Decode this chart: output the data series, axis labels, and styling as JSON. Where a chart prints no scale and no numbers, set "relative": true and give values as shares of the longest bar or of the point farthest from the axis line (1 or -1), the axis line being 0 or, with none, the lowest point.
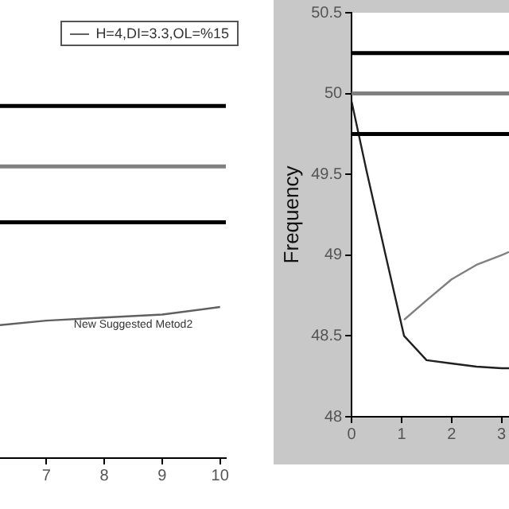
{
  "chart_data": [
    {
      "type": "line",
      "relative": true,
      "xlim": [
        6.2,
        10.1
      ],
      "xticks": [
        7,
        8,
        9,
        10
      ],
      "legend": "top right",
      "grid": false,
      "marker": "none",
      "line_style": "solid",
      "series": [
        {
          "name": "H=4,DI=3.3,OL=%15",
          "color": "#606060",
          "x": [
            6.2,
            7,
            8,
            9,
            10
          ],
          "values": [
            0.88,
            0.91,
            0.93,
            0.95,
            1
          ]
        }
      ],
      "ref_lines": [
        {
          "axis": "y",
          "value": 2.33,
          "color": "#000000"
        },
        {
          "axis": "y",
          "value": 1.93,
          "color": "#808080"
        },
        {
          "axis": "y",
          "value": 1.56,
          "color": "#000000"
        }
      ],
      "annotations": [
        {
          "text": "New Suggested Metod2",
          "x": 8.5,
          "y": 0.93
        }
      ]
    },
    {
      "type": "line",
      "ylabel": "Frequency",
      "xlim": [
        0,
        3.15
      ],
      "xticks": [
        0,
        1,
        2,
        3
      ],
      "ylim": [
        48,
        50.5
      ],
      "yticks": [
        48,
        48.5,
        49,
        49.5,
        50,
        50.5
      ],
      "grid": false,
      "marker": "none",
      "line_style": "solid",
      "series": [
        {
          "color": "#202020",
          "x": [
            0,
            0.3,
            0.68,
            1.05,
            1.5,
            2,
            2.5,
            3,
            3.15
          ],
          "values": [
            49.95,
            49.52,
            49,
            48.5,
            48.35,
            48.33,
            48.31,
            48.3,
            48.3
          ]
        },
        {
          "color": "#808080",
          "x": [
            1.05,
            1.5,
            2,
            2.5,
            3,
            3.15
          ],
          "values": [
            48.6,
            48.72,
            48.85,
            48.94,
            49,
            49.02
          ]
        }
      ],
      "ref_lines": [
        {
          "axis": "y",
          "value": 50.25,
          "color": "#000000"
        },
        {
          "axis": "y",
          "value": 50,
          "color": "#808080"
        },
        {
          "axis": "y",
          "value": 49.75,
          "color": "#000000"
        }
      ]
    }
  ]
}
